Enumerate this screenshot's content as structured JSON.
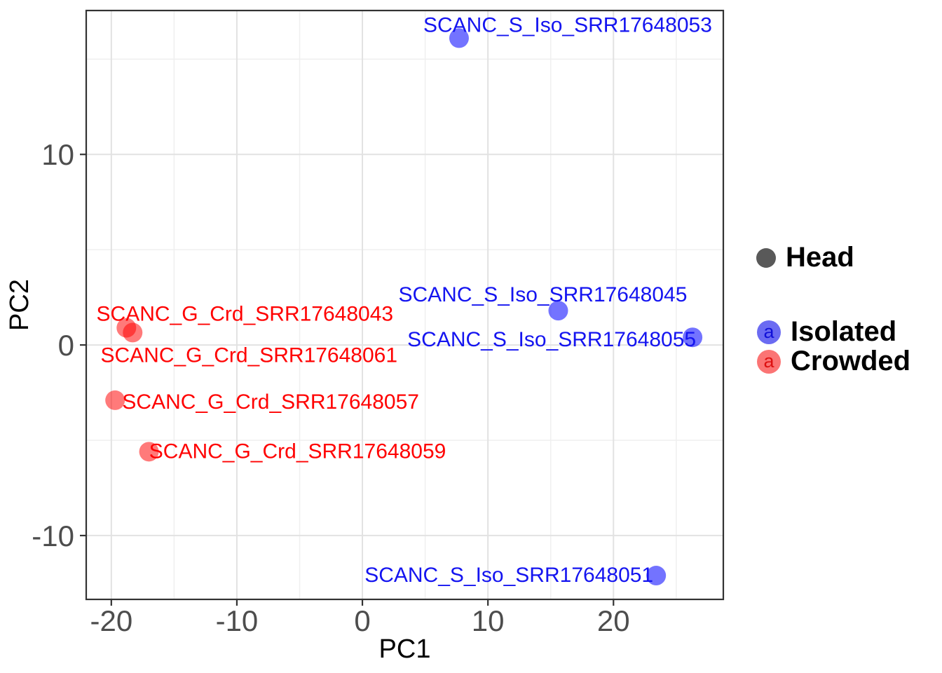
{
  "figure": {
    "background": "#FFFFFF"
  },
  "chart_data": {
    "type": "scatter",
    "title": "",
    "xlabel": "PC1",
    "ylabel": "PC2",
    "xlim": [
      -22,
      28.75
    ],
    "ylim": [
      -13.35,
      17.55
    ],
    "x_major_ticks": [
      -20,
      -10,
      0,
      10,
      20
    ],
    "x_minor_ticks": [
      -15,
      -5,
      5,
      15,
      25
    ],
    "y_major_ticks": [
      -10,
      0,
      10
    ],
    "y_minor_ticks": [
      -15,
      -5,
      5,
      15
    ],
    "grid": "on",
    "legend_position": "right",
    "colors": {
      "tick_label": "#4D4D4D",
      "axis_title": "#000000",
      "grid_major": "#E2E2E2",
      "grid_minor": "#EFEFEF",
      "panel_border": "#333333",
      "panel_background": "#FFFFFF"
    },
    "series": [
      {
        "name": "Isolated",
        "point_color": "#0000FF",
        "point_alpha": 0.55,
        "label_color": "#1414F0",
        "points": [
          {
            "label": "SCANC_S_Iso_SRR17648053",
            "x": 7.7,
            "y": 16.1,
            "label_dx": 155,
            "label_dy": -20
          },
          {
            "label": "SCANC_S_Iso_SRR17648045",
            "x": 15.6,
            "y": 1.8,
            "label_dx": -22,
            "label_dy": -24
          },
          {
            "label": "SCANC_S_Iso_SRR17648055",
            "x": 26.3,
            "y": 0.4,
            "label_dx": -201,
            "label_dy": 2
          },
          {
            "label": "SCANC_S_Iso_SRR17648051",
            "x": 23.4,
            "y": -12.1,
            "label_dx": -210,
            "label_dy": -2
          }
        ]
      },
      {
        "name": "Crowded",
        "point_color": "#FF0000",
        "point_alpha": 0.52,
        "label_color": "#FF0000",
        "points": [
          {
            "label": "SCANC_G_Crd_SRR17648043",
            "x": -18.8,
            "y": 0.9,
            "label_dx": 169,
            "label_dy": -21
          },
          {
            "label": "SCANC_G_Crd_SRR17648061",
            "x": -18.3,
            "y": 0.65,
            "label_dx": 166,
            "label_dy": 31
          },
          {
            "label": "SCANC_G_Crd_SRR17648057",
            "x": -19.7,
            "y": -2.9,
            "label_dx": 222,
            "label_dy": 1
          },
          {
            "label": "SCANC_G_Crd_SRR17648059",
            "x": -17.0,
            "y": -5.6,
            "label_dx": 212,
            "label_dy": -2
          }
        ]
      }
    ]
  },
  "legend": {
    "head": {
      "label": "Head",
      "symbol_color": "#595959"
    },
    "isolated": {
      "label": "Isolated",
      "key_char": "a",
      "circle_color": "#6B6BF2",
      "char_color": "#1111D8"
    },
    "crowded": {
      "label": "Crowded",
      "key_char": "a",
      "circle_color": "#FB7474",
      "char_color": "#DD1111"
    }
  }
}
